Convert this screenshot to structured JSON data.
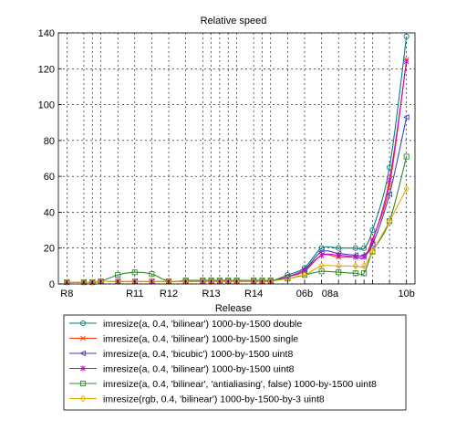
{
  "chart_data": {
    "type": "line",
    "title": "Relative speed",
    "xlabel": "Release",
    "ylabel": "",
    "ylim": [
      0,
      140
    ],
    "yticks": [
      0,
      20,
      40,
      60,
      80,
      100,
      120,
      140
    ],
    "grid": true,
    "legend_position": "below",
    "x": [
      1,
      2,
      2.5,
      3,
      4,
      5,
      6,
      7,
      8,
      9,
      9.5,
      10,
      10.5,
      11,
      12,
      12.5,
      13,
      14,
      15,
      16,
      17,
      18,
      18.5,
      19,
      20,
      21
    ],
    "xticks": [
      {
        "x": 1,
        "label": "R8"
      },
      {
        "x": 5,
        "label": "R11"
      },
      {
        "x": 7,
        "label": "R12"
      },
      {
        "x": 9.5,
        "label": "R13"
      },
      {
        "x": 12,
        "label": "R14"
      },
      {
        "x": 15,
        "label": "06b"
      },
      {
        "x": 16.5,
        "label": "08a"
      },
      {
        "x": 21,
        "label": "10b"
      }
    ],
    "series": [
      {
        "name": "imresize(a, 0.4, 'bilinear')  1000-by-1500 double",
        "color": "#008080",
        "marker": "circle",
        "values": [
          1,
          1,
          1,
          1.5,
          1.5,
          1.5,
          1.5,
          1.5,
          1.5,
          1.5,
          1.5,
          1.5,
          1.5,
          1.5,
          1.5,
          1.5,
          1.5,
          5,
          9,
          20,
          20,
          20,
          20,
          30,
          65,
          138
        ]
      },
      {
        "name": "imresize(a, 0.4, 'bilinear')  1000-by-1500 single",
        "color": "#ff3300",
        "marker": "x",
        "values": [
          1,
          1,
          1,
          1.5,
          1.5,
          1.5,
          1.5,
          1.5,
          1.5,
          1.5,
          1.5,
          1.5,
          1.5,
          1.5,
          1.5,
          1.5,
          1.5,
          4,
          7,
          16,
          15,
          15,
          15,
          25,
          55,
          125
        ]
      },
      {
        "name": "imresize(a, 0.4, 'bicubic')  1000-by-1500 uint8",
        "color": "#4040c0",
        "marker": "triangle-left",
        "values": [
          1,
          1,
          1,
          1.5,
          1.5,
          1.5,
          1.5,
          1.5,
          1.5,
          1.5,
          1.5,
          1.5,
          1.5,
          1.5,
          1.5,
          1.5,
          1.5,
          4,
          8,
          18,
          17,
          16,
          16,
          22,
          50,
          93
        ]
      },
      {
        "name": "imresize(a, 0.4, 'bilinear')  1000-by-1500 uint8",
        "color": "#cc00cc",
        "marker": "asterisk",
        "values": [
          1,
          1,
          1,
          1.5,
          1.5,
          1.5,
          1.5,
          1.5,
          1.5,
          1.5,
          1.5,
          1.5,
          1.5,
          1.5,
          1.5,
          1.5,
          1.5,
          4,
          8,
          16,
          16,
          15,
          15,
          24,
          58,
          124
        ]
      },
      {
        "name": "imresize(a, 0.4, 'bilinear', 'antialiasing', false)  1000-by-1500 uint8",
        "color": "#2e8b2e",
        "marker": "square",
        "values": [
          1,
          1,
          1,
          1.5,
          5,
          6.5,
          5.5,
          1.5,
          2,
          2,
          2,
          2,
          2,
          2,
          2,
          2,
          2,
          3,
          5,
          7,
          6.5,
          6,
          6,
          18,
          35,
          71
        ]
      },
      {
        "name": "imresize(rgb, 0.4, 'bilinear')  1000-by-1500-by-3 uint8",
        "color": "#e6a800",
        "marker": "diamond",
        "values": [
          1,
          1,
          1,
          1.5,
          1.5,
          1.5,
          1.5,
          1.5,
          1.5,
          1.5,
          1.5,
          1.5,
          1.5,
          1.5,
          1.5,
          1.5,
          1.5,
          3,
          5,
          10,
          10,
          10,
          10,
          18,
          35,
          53
        ]
      }
    ]
  }
}
